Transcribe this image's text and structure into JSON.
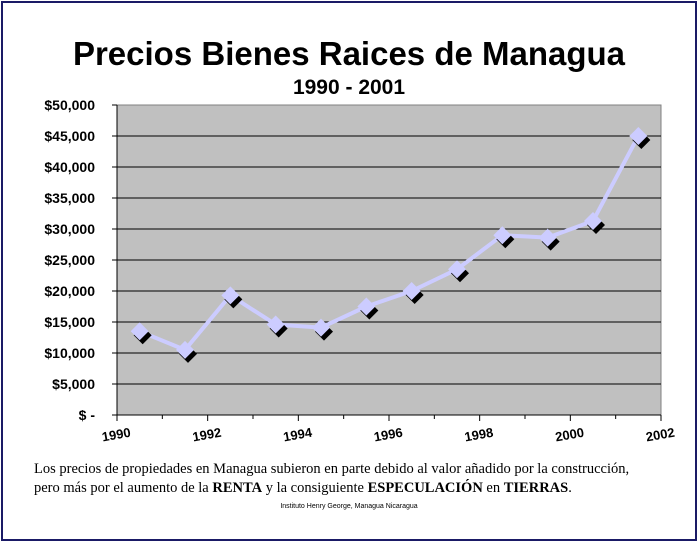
{
  "chart_data": {
    "type": "line",
    "title": "Precios Bienes Raices de Managua",
    "subtitle": "1990 - 2001",
    "x": [
      1990.5,
      1991.5,
      1992.5,
      1993.5,
      1994.5,
      1995.5,
      1996.5,
      1997.5,
      1998.5,
      1999.5,
      2000.5,
      2001.5
    ],
    "values": [
      13500,
      10500,
      19300,
      14600,
      14100,
      17500,
      20000,
      23500,
      29000,
      28600,
      31300,
      45000
    ],
    "xlim": [
      1990,
      2002
    ],
    "ylim": [
      0,
      50000
    ],
    "x_ticks": [
      "1990",
      "1992",
      "1994",
      "1996",
      "1998",
      "2000",
      "2002"
    ],
    "y_ticks": [
      "$ -",
      "$5,000",
      "$10,000",
      "$15,000",
      "$20,000",
      "$25,000",
      "$30,000",
      "$35,000",
      "$40,000",
      "$45,000",
      "$50,000"
    ],
    "grid": true,
    "plot_background": "#c0c0c0",
    "line_color": "#ccccff",
    "marker_color": "#ccccff",
    "shadow_color": "#000000"
  },
  "caption": {
    "line1": "Los precios de propiedades en Managua subieron en parte debido al valor añadido por la construcción,",
    "line2_pre": "pero más por el aumento de la ",
    "renta": "RENTA",
    "line2_mid": " y la consiguiente ",
    "especulacion": "ESPECULACIÓN",
    "line2_en": " en ",
    "tierras": "TIERRAS",
    "line2_end": "."
  },
  "source": "Instituto Henry George, Managua Nicaragua"
}
